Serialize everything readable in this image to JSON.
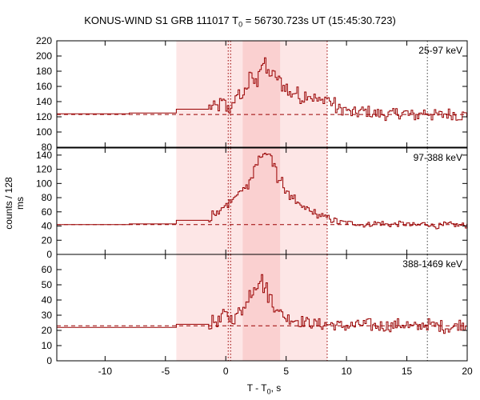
{
  "title_prefix": "KONUS-WIND S1 GRB 111017 T",
  "title_sub": "0",
  "title_suffix": " = 56730.723s UT (15:45:30.723)",
  "ylabel": "counts / 128 ms",
  "xlabel_prefix": "T - T",
  "xlabel_sub": "0",
  "xlabel_suffix": ", s",
  "colors": {
    "signal": "#990000",
    "shade_light": "#fde6e6",
    "shade_dark": "#fad0d0",
    "frame": "#000000"
  },
  "chart_data": {
    "type": "line",
    "x_range": [
      -14,
      20
    ],
    "x_ticks": [
      -10,
      -5,
      0,
      5,
      10,
      15,
      20
    ],
    "shaded_intervals": [
      {
        "from": -4.1,
        "to": 8.4,
        "shade": "light"
      },
      {
        "from": 1.4,
        "to": 4.5,
        "shade": "dark"
      }
    ],
    "vertical_markers": [
      {
        "x": 0.2,
        "style": "dotted",
        "color": "#990000"
      },
      {
        "x": 0.4,
        "style": "dotted",
        "color": "#990000"
      },
      {
        "x": 8.4,
        "style": "dotted",
        "color": "#990000"
      },
      {
        "x": 16.7,
        "style": "dotted",
        "color": "#404040"
      }
    ],
    "panels": [
      {
        "name": "25-97 keV",
        "ylim": [
          80,
          220
        ],
        "yticks": [
          80,
          100,
          120,
          140,
          160,
          180,
          200,
          220
        ],
        "background": 123,
        "steps": [
          [
            -14,
            124
          ],
          [
            -8,
            125
          ],
          [
            -4.1,
            130
          ],
          [
            -1.5,
            133
          ],
          [
            -0.6,
            138
          ],
          [
            -0.1,
            130
          ],
          [
            0.4,
            143
          ],
          [
            0.9,
            150
          ],
          [
            1.2,
            145
          ],
          [
            1.5,
            160
          ],
          [
            1.9,
            172
          ],
          [
            2.2,
            165
          ],
          [
            2.6,
            185
          ],
          [
            2.9,
            190
          ],
          [
            3.3,
            178
          ],
          [
            3.7,
            175
          ],
          [
            4.1,
            168
          ],
          [
            4.5,
            160
          ],
          [
            5.0,
            150
          ],
          [
            5.5,
            152
          ],
          [
            6.0,
            145
          ],
          [
            6.5,
            150
          ],
          [
            7.0,
            145
          ],
          [
            7.5,
            140
          ],
          [
            8.0,
            145
          ],
          [
            8.5,
            138
          ],
          [
            9.0,
            130
          ],
          [
            10.0,
            125
          ],
          [
            11.0,
            127
          ],
          [
            12.0,
            124
          ],
          [
            13.0,
            123
          ],
          [
            14.0,
            125
          ],
          [
            15.0,
            122
          ],
          [
            16.0,
            126
          ],
          [
            17.0,
            122
          ],
          [
            18.0,
            124
          ],
          [
            19.0,
            122
          ],
          [
            20.0,
            123
          ]
        ],
        "noise": 8
      },
      {
        "name": "97-388 keV",
        "ylim": [
          0,
          150
        ],
        "yticks": [
          0,
          20,
          40,
          60,
          80,
          100,
          120,
          140
        ],
        "background": 42,
        "steps": [
          [
            -14,
            42
          ],
          [
            -8,
            43
          ],
          [
            -4.1,
            48
          ],
          [
            -1.2,
            58
          ],
          [
            -0.4,
            68
          ],
          [
            0.2,
            75
          ],
          [
            0.6,
            82
          ],
          [
            1.0,
            88
          ],
          [
            1.4,
            96
          ],
          [
            1.8,
            108
          ],
          [
            2.2,
            125
          ],
          [
            2.6,
            138
          ],
          [
            3.0,
            142
          ],
          [
            3.4,
            138
          ],
          [
            3.8,
            125
          ],
          [
            4.2,
            105
          ],
          [
            4.7,
            90
          ],
          [
            5.2,
            80
          ],
          [
            5.7,
            70
          ],
          [
            6.2,
            65
          ],
          [
            6.8,
            60
          ],
          [
            7.4,
            55
          ],
          [
            8.0,
            52
          ],
          [
            8.6,
            48
          ],
          [
            9.2,
            45
          ],
          [
            10.0,
            44
          ],
          [
            11.0,
            42
          ],
          [
            12.0,
            44
          ],
          [
            13.0,
            42
          ],
          [
            14.0,
            43
          ],
          [
            15.0,
            41
          ],
          [
            16.0,
            43
          ],
          [
            17.0,
            40
          ],
          [
            18.0,
            42
          ],
          [
            19.0,
            41
          ],
          [
            20.0,
            42
          ]
        ],
        "noise": 4
      },
      {
        "name": "388-1469 keV",
        "ylim": [
          0,
          70
        ],
        "yticks": [
          0,
          10,
          20,
          30,
          40,
          50,
          60
        ],
        "background": 23,
        "steps": [
          [
            -14,
            22
          ],
          [
            -8,
            22
          ],
          [
            -4.1,
            24
          ],
          [
            -1.2,
            26
          ],
          [
            -0.4,
            30
          ],
          [
            0.2,
            28
          ],
          [
            0.8,
            32
          ],
          [
            1.4,
            38
          ],
          [
            1.8,
            45
          ],
          [
            2.2,
            50
          ],
          [
            2.6,
            54
          ],
          [
            3.0,
            48
          ],
          [
            3.4,
            42
          ],
          [
            3.8,
            36
          ],
          [
            4.3,
            31
          ],
          [
            4.8,
            28
          ],
          [
            5.4,
            27
          ],
          [
            6.0,
            26
          ],
          [
            6.6,
            25
          ],
          [
            7.2,
            24
          ],
          [
            8.0,
            24
          ],
          [
            9.0,
            23
          ],
          [
            10.0,
            23
          ],
          [
            11.0,
            24
          ],
          [
            12.0,
            23
          ],
          [
            13.0,
            23
          ],
          [
            14.0,
            24
          ],
          [
            15.0,
            22
          ],
          [
            16.0,
            24
          ],
          [
            17.0,
            23
          ],
          [
            18.0,
            22
          ],
          [
            19.0,
            24
          ],
          [
            20.0,
            23
          ]
        ],
        "noise": 4
      }
    ]
  }
}
